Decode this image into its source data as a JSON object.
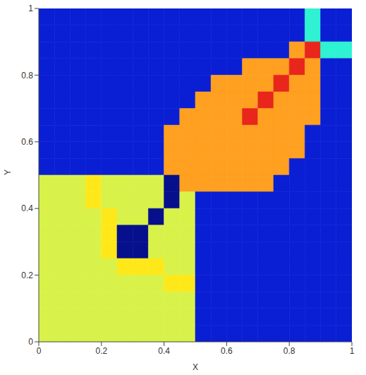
{
  "chart_data": {
    "type": "heatmap",
    "x_label": "X",
    "y_label": "Y",
    "xlim": [
      0,
      1
    ],
    "ylim": [
      0,
      1
    ],
    "xticks": [
      0,
      0.2,
      0.4,
      0.6,
      0.8,
      1
    ],
    "yticks": [
      0,
      0.2,
      0.4,
      0.6,
      0.8,
      1
    ],
    "grid": false,
    "colors": [
      "#0a1fd4",
      "#2ef2d2",
      "#d8f24a",
      "#ffa020",
      "#e8261c",
      "#06108c",
      "#ffe81a"
    ],
    "x": [
      0.025,
      0.075,
      0.125,
      0.175,
      0.225,
      0.275,
      0.325,
      0.375,
      0.425,
      0.475,
      0.525,
      0.575,
      0.625,
      0.675,
      0.725,
      0.775,
      0.825,
      0.875,
      0.925,
      0.975
    ],
    "y": [
      0.975,
      0.925,
      0.875,
      0.825,
      0.775,
      0.725,
      0.675,
      0.625,
      0.575,
      0.525,
      0.475,
      0.425,
      0.375,
      0.325,
      0.275,
      0.225,
      0.175,
      0.125,
      0.075,
      0.025
    ],
    "cells": [
      [
        0,
        0,
        0,
        0,
        0,
        0,
        0,
        0,
        0,
        0,
        0,
        0,
        0,
        0,
        0,
        0,
        0,
        1,
        0,
        0
      ],
      [
        0,
        0,
        0,
        0,
        0,
        0,
        0,
        0,
        0,
        0,
        0,
        0,
        0,
        0,
        0,
        0,
        0,
        1,
        0,
        0
      ],
      [
        0,
        0,
        0,
        0,
        0,
        0,
        0,
        0,
        0,
        0,
        0,
        0,
        0,
        0,
        0,
        0,
        3,
        4,
        1,
        1
      ],
      [
        0,
        0,
        0,
        0,
        0,
        0,
        0,
        0,
        0,
        0,
        0,
        0,
        0,
        3,
        3,
        3,
        4,
        3,
        0,
        0
      ],
      [
        0,
        0,
        0,
        0,
        0,
        0,
        0,
        0,
        0,
        0,
        0,
        3,
        3,
        3,
        3,
        4,
        3,
        3,
        0,
        0
      ],
      [
        0,
        0,
        0,
        0,
        0,
        0,
        0,
        0,
        0,
        0,
        3,
        3,
        3,
        3,
        4,
        3,
        3,
        3,
        0,
        0
      ],
      [
        0,
        0,
        0,
        0,
        0,
        0,
        0,
        0,
        0,
        3,
        3,
        3,
        3,
        4,
        3,
        3,
        3,
        3,
        0,
        0
      ],
      [
        0,
        0,
        0,
        0,
        0,
        0,
        0,
        0,
        3,
        3,
        3,
        3,
        3,
        3,
        3,
        3,
        3,
        0,
        0,
        0
      ],
      [
        0,
        0,
        0,
        0,
        0,
        0,
        0,
        0,
        3,
        3,
        3,
        3,
        3,
        3,
        3,
        3,
        3,
        0,
        0,
        0
      ],
      [
        0,
        0,
        0,
        0,
        0,
        0,
        0,
        0,
        3,
        3,
        3,
        3,
        3,
        3,
        3,
        3,
        0,
        0,
        0,
        0
      ],
      [
        2,
        2,
        2,
        6,
        2,
        2,
        2,
        2,
        5,
        3,
        3,
        3,
        3,
        3,
        3,
        0,
        0,
        0,
        0,
        0
      ],
      [
        2,
        2,
        2,
        6,
        2,
        2,
        2,
        2,
        5,
        2,
        0,
        0,
        0,
        0,
        0,
        0,
        0,
        0,
        0,
        0
      ],
      [
        2,
        2,
        2,
        2,
        6,
        2,
        2,
        5,
        2,
        2,
        0,
        0,
        0,
        0,
        0,
        0,
        0,
        0,
        0,
        0
      ],
      [
        2,
        2,
        2,
        2,
        6,
        5,
        5,
        2,
        2,
        2,
        0,
        0,
        0,
        0,
        0,
        0,
        0,
        0,
        0,
        0
      ],
      [
        2,
        2,
        2,
        2,
        6,
        5,
        5,
        2,
        2,
        2,
        0,
        0,
        0,
        0,
        0,
        0,
        0,
        0,
        0,
        0
      ],
      [
        2,
        2,
        2,
        2,
        2,
        6,
        6,
        6,
        2,
        2,
        0,
        0,
        0,
        0,
        0,
        0,
        0,
        0,
        0,
        0
      ],
      [
        2,
        2,
        2,
        2,
        2,
        2,
        2,
        2,
        6,
        6,
        0,
        0,
        0,
        0,
        0,
        0,
        0,
        0,
        0,
        0
      ],
      [
        2,
        2,
        2,
        2,
        2,
        2,
        2,
        2,
        2,
        2,
        0,
        0,
        0,
        0,
        0,
        0,
        0,
        0,
        0,
        0
      ],
      [
        2,
        2,
        2,
        2,
        2,
        2,
        2,
        2,
        2,
        2,
        0,
        0,
        0,
        0,
        0,
        0,
        0,
        0,
        0,
        0
      ],
      [
        2,
        2,
        2,
        2,
        2,
        2,
        2,
        2,
        2,
        2,
        0,
        0,
        0,
        0,
        0,
        0,
        0,
        0,
        0,
        0
      ]
    ]
  }
}
